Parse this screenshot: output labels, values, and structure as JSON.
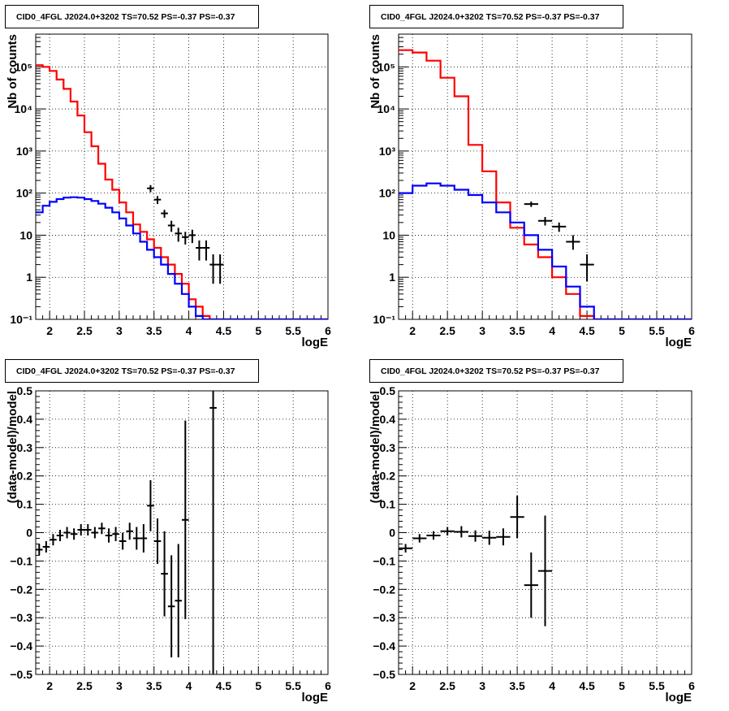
{
  "chart_data": [
    {
      "type": "line",
      "title": "CID0_4FGL J2024.0+3202 TS=70.52 PS=-0.37 PS=-0.37",
      "xlabel": "logE",
      "ylabel": "Nb of counts",
      "xlim": [
        1.8,
        6.0
      ],
      "ylim": [
        0.1,
        600000
      ],
      "yscale": "log",
      "grid": true,
      "xticks": [
        "2",
        "2.5",
        "3",
        "3.5",
        "4",
        "4.5",
        "5",
        "5.5",
        "6"
      ],
      "yticks": [
        "10⁻¹",
        "1",
        "10",
        "10²",
        "10³",
        "10⁴",
        "10⁵"
      ],
      "series": [
        {
          "style": "step",
          "color": "#ff0000",
          "edges": [
            1.8,
            1.9,
            2.0,
            2.1,
            2.2,
            2.3,
            2.4,
            2.5,
            2.6,
            2.7,
            2.8,
            2.9,
            3.0,
            3.1,
            3.2,
            3.3,
            3.4,
            3.5,
            3.6,
            3.7,
            3.8,
            3.9,
            4.0,
            4.1,
            4.2,
            4.3,
            4.4,
            4.5,
            4.6,
            4.7,
            4.8,
            4.9,
            5.0,
            5.1,
            5.2,
            5.3,
            5.4,
            5.5,
            5.6,
            5.7,
            5.8,
            5.9,
            6.0
          ],
          "values": [
            110000,
            100000,
            80000,
            50000,
            30000,
            15000,
            7000,
            2800,
            1300,
            500,
            210,
            120,
            60,
            35,
            18,
            12,
            8,
            5,
            3,
            2,
            1.2,
            0.7,
            0.3,
            0.2,
            0.12,
            0.1,
            0.1,
            0.1,
            0.1,
            0.1,
            0.1,
            0.1,
            0.1,
            0.1,
            0.1,
            0.1,
            0.1,
            0.1,
            0.1,
            0.1,
            0.1,
            0.1
          ]
        },
        {
          "style": "step",
          "color": "#0000ff",
          "edges": [
            1.8,
            1.9,
            2.0,
            2.1,
            2.2,
            2.3,
            2.4,
            2.5,
            2.6,
            2.7,
            2.8,
            2.9,
            3.0,
            3.1,
            3.2,
            3.3,
            3.4,
            3.5,
            3.6,
            3.7,
            3.8,
            3.9,
            4.0,
            4.1,
            4.2,
            4.3,
            4.4,
            4.5,
            4.6,
            4.7,
            4.8,
            4.9,
            5.0,
            5.1,
            5.2,
            5.3,
            5.4,
            5.5,
            5.6,
            5.7,
            5.8,
            5.9,
            6.0
          ],
          "values": [
            35,
            50,
            62,
            72,
            78,
            80,
            78,
            72,
            65,
            56,
            45,
            35,
            25,
            17,
            11,
            7,
            4.5,
            3,
            2,
            1.2,
            0.7,
            0.4,
            0.2,
            0.12,
            0.1,
            0.1,
            0.1,
            0.1,
            0.1,
            0.1,
            0.1,
            0.1,
            0.1,
            0.1,
            0.1,
            0.1,
            0.1,
            0.1,
            0.1,
            0.1,
            0.1,
            0.1
          ]
        },
        {
          "style": "errorbar",
          "color": "#000000",
          "points": [
            {
              "x": 3.45,
              "y": 130,
              "yerr_lo": 25,
              "yerr_hi": 25,
              "xerr": 0.05
            },
            {
              "x": 3.55,
              "y": 70,
              "yerr_lo": 15,
              "yerr_hi": 15,
              "xerr": 0.05
            },
            {
              "x": 3.65,
              "y": 33,
              "yerr_lo": 7,
              "yerr_hi": 7,
              "xerr": 0.05
            },
            {
              "x": 3.75,
              "y": 17,
              "yerr_lo": 5,
              "yerr_hi": 5,
              "xerr": 0.05
            },
            {
              "x": 3.85,
              "y": 11,
              "yerr_lo": 4,
              "yerr_hi": 4,
              "xerr": 0.05
            },
            {
              "x": 3.95,
              "y": 9,
              "yerr_lo": 3,
              "yerr_hi": 3,
              "xerr": 0.05
            },
            {
              "x": 4.05,
              "y": 10,
              "yerr_lo": 3.5,
              "yerr_hi": 3.5,
              "xerr": 0.05
            },
            {
              "x": 4.15,
              "y": 5,
              "yerr_lo": 2.5,
              "yerr_hi": 2.5,
              "xerr": 0.05
            },
            {
              "x": 4.25,
              "y": 5,
              "yerr_lo": 2.5,
              "yerr_hi": 2.5,
              "xerr": 0.05
            },
            {
              "x": 4.35,
              "y": 2,
              "yerr_lo": 1.3,
              "yerr_hi": 1.5,
              "xerr": 0.05
            },
            {
              "x": 4.45,
              "y": 2,
              "yerr_lo": 1.3,
              "yerr_hi": 1.5,
              "xerr": 0.05
            }
          ]
        }
      ]
    },
    {
      "type": "line",
      "title": "CID0_4FGL J2024.0+3202 TS=70.52 PS=-0.37 PS=-0.37",
      "xlabel": "logE",
      "ylabel": "Nb of counts",
      "xlim": [
        1.8,
        6.0
      ],
      "ylim": [
        0.1,
        600000
      ],
      "yscale": "log",
      "grid": true,
      "xticks": [
        "2",
        "2.5",
        "3",
        "3.5",
        "4",
        "4.5",
        "5",
        "5.5",
        "6"
      ],
      "yticks": [
        "10⁻¹",
        "1",
        "10",
        "10²",
        "10³",
        "10⁴",
        "10⁵"
      ],
      "series": [
        {
          "style": "step",
          "color": "#ff0000",
          "edges": [
            1.8,
            2.0,
            2.2,
            2.4,
            2.6,
            2.8,
            3.0,
            3.2,
            3.4,
            3.6,
            3.8,
            4.0,
            4.2,
            4.4,
            4.6,
            4.8,
            5.0,
            5.2,
            5.4,
            5.6,
            5.8,
            6.0
          ],
          "values": [
            250000,
            220000,
            140000,
            55000,
            20000,
            1400,
            330,
            60,
            15,
            6,
            3,
            1,
            0.4,
            0.12,
            0.1,
            0.1,
            0.1,
            0.1,
            0.1,
            0.1,
            0.1
          ]
        },
        {
          "style": "step",
          "color": "#0000ff",
          "edges": [
            1.8,
            2.0,
            2.2,
            2.4,
            2.6,
            2.8,
            3.0,
            3.2,
            3.4,
            3.6,
            3.8,
            4.0,
            4.2,
            4.4,
            4.6,
            4.8,
            5.0,
            5.2,
            5.4,
            5.6,
            5.8,
            6.0
          ],
          "values": [
            100,
            150,
            170,
            150,
            120,
            90,
            60,
            35,
            20,
            10,
            4.5,
            1.8,
            0.6,
            0.2,
            0.1,
            0.1,
            0.1,
            0.1,
            0.1,
            0.1,
            0.1
          ]
        },
        {
          "style": "errorbar",
          "color": "#000000",
          "points": [
            {
              "x": 3.7,
              "y": 55,
              "yerr_lo": 8,
              "yerr_hi": 8,
              "xerr": 0.1
            },
            {
              "x": 3.9,
              "y": 22,
              "yerr_lo": 5,
              "yerr_hi": 5,
              "xerr": 0.1
            },
            {
              "x": 4.1,
              "y": 16,
              "yerr_lo": 4,
              "yerr_hi": 4,
              "xerr": 0.1
            },
            {
              "x": 4.3,
              "y": 7,
              "yerr_lo": 2.5,
              "yerr_hi": 3,
              "xerr": 0.1
            },
            {
              "x": 4.5,
              "y": 2,
              "yerr_lo": 1.2,
              "yerr_hi": 1.5,
              "xerr": 0.1
            }
          ]
        }
      ]
    },
    {
      "type": "scatter",
      "title": "CID0_4FGL J2024.0+3202 TS=70.52 PS=-0.37 PS=-0.37",
      "xlabel": "logE",
      "ylabel": "(data-model)/model",
      "xlim": [
        1.8,
        6.0
      ],
      "ylim": [
        -0.5,
        0.5
      ],
      "grid": true,
      "xticks": [
        "2",
        "2.5",
        "3",
        "3.5",
        "4",
        "4.5",
        "5",
        "5.5",
        "6"
      ],
      "yticks": [
        "−0.5",
        "−0.4",
        "−0.3",
        "−0.2",
        "−0.1",
        "0",
        "0.1",
        "0.2",
        "0.3",
        "0.4",
        "0.5"
      ],
      "series": [
        {
          "style": "errorbar",
          "color": "#000000",
          "points": [
            {
              "x": 1.85,
              "y": -0.06,
              "yerr": 0.02,
              "xerr": 0.05
            },
            {
              "x": 1.95,
              "y": -0.05,
              "yerr": 0.02,
              "xerr": 0.05
            },
            {
              "x": 2.05,
              "y": -0.025,
              "yerr": 0.02,
              "xerr": 0.05
            },
            {
              "x": 2.15,
              "y": -0.01,
              "yerr": 0.02,
              "xerr": 0.05
            },
            {
              "x": 2.25,
              "y": 0.0,
              "yerr": 0.02,
              "xerr": 0.05
            },
            {
              "x": 2.35,
              "y": -0.005,
              "yerr": 0.02,
              "xerr": 0.05
            },
            {
              "x": 2.45,
              "y": 0.01,
              "yerr": 0.02,
              "xerr": 0.05
            },
            {
              "x": 2.55,
              "y": 0.01,
              "yerr": 0.02,
              "xerr": 0.05
            },
            {
              "x": 2.65,
              "y": 0.0,
              "yerr": 0.02,
              "xerr": 0.05
            },
            {
              "x": 2.75,
              "y": 0.015,
              "yerr": 0.02,
              "xerr": 0.05
            },
            {
              "x": 2.85,
              "y": -0.01,
              "yerr": 0.025,
              "xerr": 0.05
            },
            {
              "x": 2.95,
              "y": -0.005,
              "yerr": 0.025,
              "xerr": 0.05
            },
            {
              "x": 3.05,
              "y": -0.03,
              "yerr": 0.03,
              "xerr": 0.05
            },
            {
              "x": 3.15,
              "y": 0.005,
              "yerr": 0.03,
              "xerr": 0.05
            },
            {
              "x": 3.25,
              "y": -0.02,
              "yerr": 0.04,
              "xerr": 0.05
            },
            {
              "x": 3.35,
              "y": -0.02,
              "yerr": 0.05,
              "xerr": 0.05
            },
            {
              "x": 3.45,
              "y": 0.095,
              "yerr": 0.09,
              "xerr": 0.05
            },
            {
              "x": 3.55,
              "y": -0.03,
              "yerr": 0.08,
              "xerr": 0.05
            },
            {
              "x": 3.65,
              "y": -0.145,
              "yerr": 0.15,
              "xerr": 0.05
            },
            {
              "x": 3.75,
              "y": -0.26,
              "yerr": 0.18,
              "xerr": 0.05
            },
            {
              "x": 3.85,
              "y": -0.24,
              "yerr": 0.2,
              "xerr": 0.05
            },
            {
              "x": 3.95,
              "y": 0.045,
              "yerr": 0.35,
              "xerr": 0.05
            },
            {
              "x": 4.35,
              "y": 0.44,
              "yerr": 0.95,
              "xerr": 0.05
            }
          ]
        }
      ]
    },
    {
      "type": "scatter",
      "title": "CID0_4FGL J2024.0+3202 TS=70.52 PS=-0.37 PS=-0.37",
      "xlabel": "logE",
      "ylabel": "(data-model)/model",
      "xlim": [
        1.8,
        6.0
      ],
      "ylim": [
        -0.5,
        0.5
      ],
      "grid": true,
      "xticks": [
        "2",
        "2.5",
        "3",
        "3.5",
        "4",
        "4.5",
        "5",
        "5.5",
        "6"
      ],
      "yticks": [
        "−0.5",
        "−0.4",
        "−0.3",
        "−0.2",
        "−0.1",
        "0",
        "0.1",
        "0.2",
        "0.3",
        "0.4",
        "0.5"
      ],
      "series": [
        {
          "style": "errorbar",
          "color": "#000000",
          "points": [
            {
              "x": 1.9,
              "y": -0.055,
              "yerr": 0.015,
              "xerr": 0.1
            },
            {
              "x": 2.1,
              "y": -0.02,
              "yerr": 0.015,
              "xerr": 0.1
            },
            {
              "x": 2.3,
              "y": -0.01,
              "yerr": 0.015,
              "xerr": 0.1
            },
            {
              "x": 2.5,
              "y": 0.005,
              "yerr": 0.015,
              "xerr": 0.1
            },
            {
              "x": 2.7,
              "y": 0.003,
              "yerr": 0.02,
              "xerr": 0.1
            },
            {
              "x": 2.9,
              "y": -0.012,
              "yerr": 0.02,
              "xerr": 0.1
            },
            {
              "x": 3.1,
              "y": -0.018,
              "yerr": 0.025,
              "xerr": 0.1
            },
            {
              "x": 3.3,
              "y": -0.015,
              "yerr": 0.03,
              "xerr": 0.1
            },
            {
              "x": 3.5,
              "y": 0.055,
              "yerr": 0.075,
              "xerr": 0.1
            },
            {
              "x": 3.7,
              "y": -0.185,
              "yerr": 0.115,
              "xerr": 0.1
            },
            {
              "x": 3.9,
              "y": -0.135,
              "yerr": 0.195,
              "xerr": 0.1
            }
          ]
        }
      ]
    }
  ]
}
